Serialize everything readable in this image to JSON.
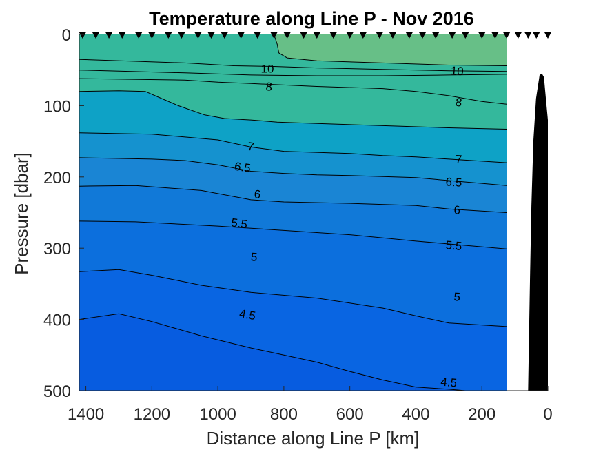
{
  "chart_data": {
    "type": "contour",
    "title": "Temperature along Line P - Nov 2016",
    "xlabel": "Distance along Line P [km]",
    "ylabel": "Pressure [dbar]",
    "xlim": [
      1420,
      0
    ],
    "ylim": [
      0,
      500
    ],
    "x_reversed": true,
    "y_reversed": true,
    "xticks": [
      1400,
      1200,
      1000,
      800,
      600,
      400,
      200,
      0
    ],
    "yticks": [
      0,
      100,
      200,
      300,
      400,
      500
    ],
    "data_extent_x": [
      1420,
      125
    ],
    "station_markers_km": [
      1410,
      1370,
      1330,
      1290,
      1240,
      1200,
      1150,
      1110,
      1060,
      1020,
      980,
      930,
      880,
      830,
      790,
      740,
      700,
      650,
      600,
      560,
      510,
      470,
      420,
      380,
      340,
      290,
      250,
      200,
      160,
      125,
      90,
      60,
      35,
      0
    ],
    "fill_levels": [
      {
        "label": "≥10",
        "color": "#67bf87"
      },
      {
        "label": "8-10",
        "color": "#34b89c"
      },
      {
        "label": "7-8",
        "color": "#0ea2c6"
      },
      {
        "label": "6.5-7",
        "color": "#1592cf"
      },
      {
        "label": "6-6.5",
        "color": "#1a85d4"
      },
      {
        "label": "5.5-6",
        "color": "#1179d8"
      },
      {
        "label": "5-5.5",
        "color": "#0c6fdd"
      },
      {
        "label": "4.5-5",
        "color": "#0965e2"
      },
      {
        "label": "<4.5",
        "color": "#075ce0"
      }
    ],
    "contours": [
      {
        "level": 10,
        "label": "10",
        "points": [
          [
            1420,
            35
          ],
          [
            1100,
            40
          ],
          [
            950,
            44
          ],
          [
            830,
            45
          ],
          [
            700,
            47
          ],
          [
            500,
            49
          ],
          [
            300,
            51
          ],
          [
            125,
            52
          ]
        ]
      },
      {
        "level": 9,
        "label": "",
        "points": [
          [
            1420,
            50
          ],
          [
            1100,
            54
          ],
          [
            900,
            57
          ],
          [
            700,
            58
          ],
          [
            500,
            58
          ],
          [
            300,
            57
          ],
          [
            125,
            56
          ]
        ]
      },
      {
        "level": 8,
        "label": "8",
        "points": [
          [
            1420,
            62
          ],
          [
            1100,
            64
          ],
          [
            1000,
            67
          ],
          [
            900,
            69
          ],
          [
            800,
            71
          ],
          [
            700,
            73
          ],
          [
            500,
            76
          ],
          [
            400,
            80
          ],
          [
            300,
            86
          ],
          [
            200,
            94
          ],
          [
            125,
            98
          ]
        ]
      },
      {
        "level": 7.5,
        "label": "",
        "points": [
          [
            1420,
            80
          ],
          [
            1300,
            79
          ],
          [
            1220,
            80
          ],
          [
            1180,
            88
          ],
          [
            1120,
            100
          ],
          [
            1040,
            113
          ],
          [
            980,
            118
          ],
          [
            900,
            120
          ],
          [
            820,
            123
          ],
          [
            700,
            125
          ],
          [
            500,
            128
          ],
          [
            300,
            131
          ],
          [
            125,
            133
          ]
        ]
      },
      {
        "level": 7,
        "label": "7",
        "points": [
          [
            1420,
            138
          ],
          [
            1200,
            140
          ],
          [
            1000,
            148
          ],
          [
            900,
            158
          ],
          [
            800,
            164
          ],
          [
            600,
            167
          ],
          [
            500,
            170
          ],
          [
            400,
            172
          ],
          [
            300,
            175
          ],
          [
            125,
            180
          ]
        ]
      },
      {
        "level": 6.5,
        "label": "6.5",
        "points": [
          [
            1420,
            173
          ],
          [
            1200,
            175
          ],
          [
            1100,
            177
          ],
          [
            1000,
            183
          ],
          [
            900,
            192
          ],
          [
            800,
            195
          ],
          [
            700,
            197
          ],
          [
            600,
            198
          ],
          [
            400,
            201
          ],
          [
            300,
            205
          ],
          [
            125,
            212
          ]
        ]
      },
      {
        "level": 6,
        "label": "6",
        "points": [
          [
            1420,
            213
          ],
          [
            1250,
            212
          ],
          [
            1050,
            219
          ],
          [
            900,
            232
          ],
          [
            800,
            235
          ],
          [
            600,
            237
          ],
          [
            400,
            240
          ],
          [
            300,
            245
          ],
          [
            125,
            250
          ]
        ]
      },
      {
        "level": 5.5,
        "label": "5.5",
        "points": [
          [
            1420,
            262
          ],
          [
            1250,
            263
          ],
          [
            1000,
            269
          ],
          [
            800,
            275
          ],
          [
            600,
            281
          ],
          [
            400,
            290
          ],
          [
            300,
            294
          ],
          [
            125,
            301
          ]
        ]
      },
      {
        "level": 5,
        "label": "5",
        "points": [
          [
            1420,
            333
          ],
          [
            1300,
            330
          ],
          [
            1200,
            338
          ],
          [
            1050,
            352
          ],
          [
            900,
            362
          ],
          [
            700,
            370
          ],
          [
            500,
            384
          ],
          [
            400,
            395
          ],
          [
            300,
            405
          ],
          [
            125,
            410
          ]
        ]
      },
      {
        "level": 4.5,
        "label": "4.5",
        "points": [
          [
            1420,
            400
          ],
          [
            1300,
            392
          ],
          [
            1200,
            403
          ],
          [
            1050,
            423
          ],
          [
            900,
            440
          ],
          [
            800,
            450
          ],
          [
            700,
            460
          ],
          [
            600,
            473
          ],
          [
            500,
            485
          ],
          [
            400,
            495
          ],
          [
            300,
            498
          ],
          [
            200,
            502
          ],
          [
            125,
            505
          ]
        ]
      }
    ],
    "contour_labels": [
      {
        "text": "10",
        "x": 850,
        "y": 48,
        "angle": 0
      },
      {
        "text": "10",
        "x": 275,
        "y": 51,
        "angle": 4
      },
      {
        "text": "8",
        "x": 845,
        "y": 73,
        "angle": 3
      },
      {
        "text": "8",
        "x": 270,
        "y": 95,
        "angle": 8
      },
      {
        "text": "7",
        "x": 900,
        "y": 157,
        "angle": 8
      },
      {
        "text": "7",
        "x": 270,
        "y": 175,
        "angle": 3
      },
      {
        "text": "6.5",
        "x": 925,
        "y": 186,
        "angle": 8
      },
      {
        "text": "6.5",
        "x": 285,
        "y": 207,
        "angle": 4
      },
      {
        "text": "6",
        "x": 880,
        "y": 224,
        "angle": 4
      },
      {
        "text": "6",
        "x": 275,
        "y": 246,
        "angle": 2
      },
      {
        "text": "5.5",
        "x": 935,
        "y": 265,
        "angle": 8
      },
      {
        "text": "5.5",
        "x": 285,
        "y": 296,
        "angle": 5
      },
      {
        "text": "5",
        "x": 890,
        "y": 312,
        "angle": 4
      },
      {
        "text": "5",
        "x": 275,
        "y": 368,
        "angle": 3
      },
      {
        "text": "4.5",
        "x": 910,
        "y": 393,
        "angle": 10
      },
      {
        "text": "4.5",
        "x": 300,
        "y": 488,
        "angle": 5
      }
    ],
    "warm_patch": {
      "level": 10,
      "color": "#67bf87",
      "outline": [
        [
          830,
          0
        ],
        [
          820,
          14
        ],
        [
          815,
          26
        ],
        [
          790,
          33
        ],
        [
          700,
          37
        ],
        [
          500,
          40
        ],
        [
          300,
          43
        ],
        [
          125,
          44
        ],
        [
          125,
          0
        ]
      ]
    },
    "bathymetry": {
      "color": "#000000",
      "outline": [
        [
          60,
          500
        ],
        [
          57,
          420
        ],
        [
          54,
          340
        ],
        [
          50,
          240
        ],
        [
          44,
          150
        ],
        [
          36,
          90
        ],
        [
          25,
          57
        ],
        [
          18,
          55
        ],
        [
          12,
          60
        ],
        [
          6,
          90
        ],
        [
          0,
          120
        ],
        [
          0,
          500
        ]
      ]
    },
    "grid": false,
    "legend": "none"
  }
}
